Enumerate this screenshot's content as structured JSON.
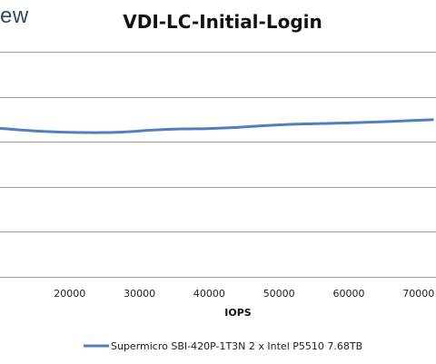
{
  "brand": {
    "logo_text_fragment": "ew"
  },
  "chart_data": {
    "type": "line",
    "title": "VDI-LC-Initial-Login",
    "xlabel": "IOPS",
    "ylabel": "",
    "xlim": [
      10000,
      72500
    ],
    "ylim": [
      0,
      1
    ],
    "grid": true,
    "x_ticks": [
      20000,
      30000,
      40000,
      50000,
      60000,
      70000
    ],
    "y_gridlines": [
      0.2,
      0.4,
      0.6,
      0.8,
      1.0
    ],
    "legend_position": "bottom",
    "series": [
      {
        "name": "Supermicro SBI-420P-1T3N 2 x Intel P5510 7.68TB",
        "color": "#4f81bd",
        "x": [
          10000,
          15000,
          20000,
          25000,
          28000,
          32000,
          36000,
          40000,
          44000,
          48000,
          52000,
          56000,
          60000,
          64000,
          68000,
          72000
        ],
        "y": [
          0.66,
          0.648,
          0.642,
          0.641,
          0.644,
          0.652,
          0.657,
          0.659,
          0.664,
          0.672,
          0.678,
          0.681,
          0.684,
          0.688,
          0.693,
          0.698
        ]
      }
    ]
  }
}
